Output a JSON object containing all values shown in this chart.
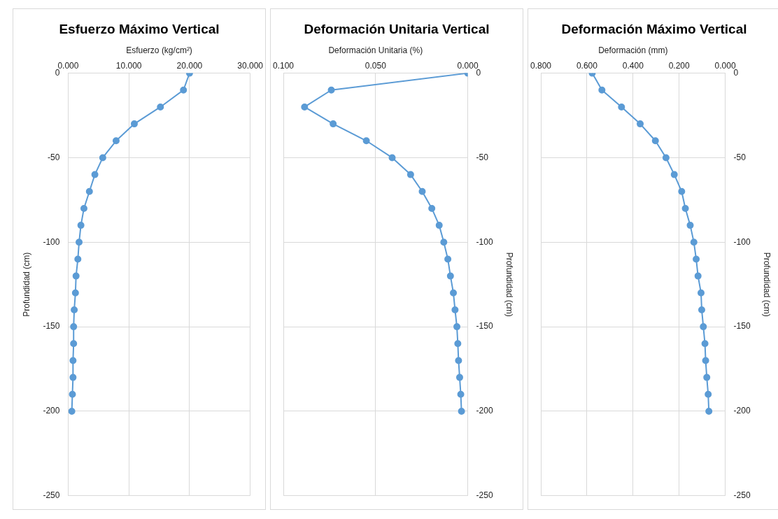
{
  "chart_data": [
    {
      "type": "line",
      "title": "Esfuerzo Máximo Vertical",
      "xlabel": "Esfuerzo (kg/cm²)",
      "ylabel": "Profundidad (cm)",
      "xlim": [
        0,
        30
      ],
      "xticks": [
        {
          "value": 0,
          "label": "0.000"
        },
        {
          "value": 10,
          "label": "10.000"
        },
        {
          "value": 20,
          "label": "20.000"
        },
        {
          "value": 30,
          "label": "30.000"
        }
      ],
      "ylim": [
        -250,
        0
      ],
      "yticks": [
        0,
        -50,
        -100,
        -150,
        -200,
        -250
      ],
      "grid": true,
      "marker": "circle",
      "series": [
        {
          "color": "#5b9bd5",
          "x": [
            20.0,
            19.0,
            15.2,
            10.9,
            7.9,
            5.7,
            4.4,
            3.5,
            2.6,
            2.1,
            1.8,
            1.6,
            1.3,
            1.2,
            1.0,
            0.9,
            0.9,
            0.8,
            0.8,
            0.7,
            0.6
          ],
          "values": [
            0,
            -10,
            -20,
            -30,
            -40,
            -50,
            -60,
            -70,
            -80,
            -90,
            -100,
            -110,
            -120,
            -130,
            -140,
            -150,
            -160,
            -170,
            -180,
            -190,
            -200
          ]
        }
      ]
    },
    {
      "type": "line",
      "title": "Deformación Unitaria Vertical",
      "xlabel": "Deformación Unitaria (%)",
      "ylabel": "Profundidad (cm)",
      "xlim": [
        0.1,
        0
      ],
      "xticks": [
        {
          "value": 0.1,
          "label": "0.100"
        },
        {
          "value": 0.05,
          "label": "0.050"
        },
        {
          "value": 0,
          "label": "0.000"
        }
      ],
      "ylim": [
        -250,
        0
      ],
      "yticks": [
        0,
        -50,
        -100,
        -150,
        -200,
        -250
      ],
      "grid": true,
      "marker": "circle",
      "series": [
        {
          "color": "#5b9bd5",
          "x": [
            0.0,
            0.074,
            0.0885,
            0.073,
            0.055,
            0.041,
            0.031,
            0.0247,
            0.0195,
            0.0155,
            0.013,
            0.0108,
            0.0094,
            0.0078,
            0.0069,
            0.0059,
            0.0054,
            0.005,
            0.0044,
            0.0038,
            0.0034
          ],
          "values": [
            0,
            -10,
            -20,
            -30,
            -40,
            -50,
            -60,
            -70,
            -80,
            -90,
            -100,
            -110,
            -120,
            -130,
            -140,
            -150,
            -160,
            -170,
            -180,
            -190,
            -200
          ]
        }
      ]
    },
    {
      "type": "line",
      "title": "Deformación Máximo Vertical",
      "xlabel": "Deformación (mm)",
      "ylabel": "Profundidad (cm)",
      "xlim": [
        0.8,
        0
      ],
      "xticks": [
        {
          "value": 0.8,
          "label": "0.800"
        },
        {
          "value": 0.6,
          "label": "0.600"
        },
        {
          "value": 0.4,
          "label": "0.400"
        },
        {
          "value": 0.2,
          "label": "0.200"
        },
        {
          "value": 0,
          "label": "0.000"
        }
      ],
      "ylim": [
        -250,
        0
      ],
      "yticks": [
        0,
        -50,
        -100,
        -150,
        -200,
        -250
      ],
      "grid": true,
      "marker": "circle",
      "series": [
        {
          "color": "#5b9bd5",
          "x": [
            0.577,
            0.535,
            0.45,
            0.369,
            0.303,
            0.257,
            0.221,
            0.189,
            0.173,
            0.152,
            0.136,
            0.126,
            0.118,
            0.105,
            0.102,
            0.095,
            0.088,
            0.085,
            0.08,
            0.074,
            0.071
          ],
          "values": [
            0,
            -10,
            -20,
            -30,
            -40,
            -50,
            -60,
            -70,
            -80,
            -90,
            -100,
            -110,
            -120,
            -130,
            -140,
            -150,
            -160,
            -170,
            -180,
            -190,
            -200
          ]
        }
      ]
    }
  ]
}
